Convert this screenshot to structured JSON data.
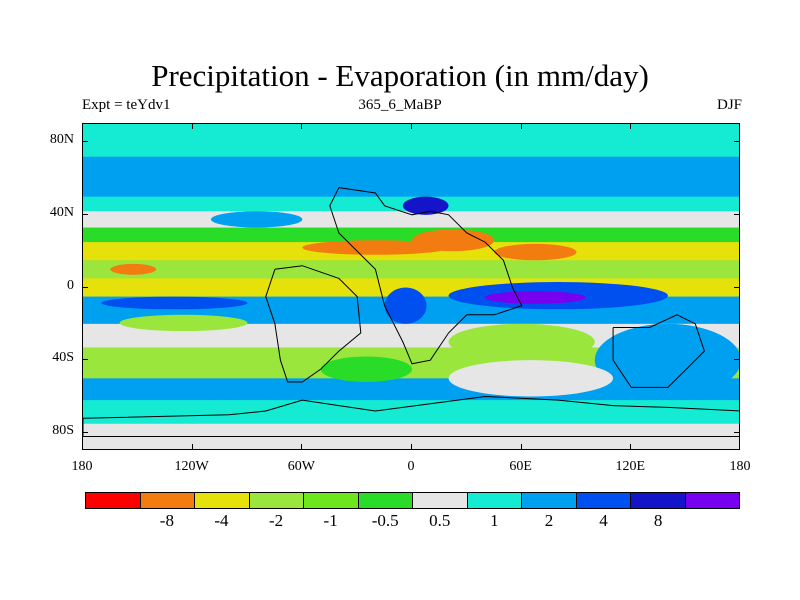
{
  "title": "Precipitation - Evaporation (in mm/day)",
  "subtitle_left": "Expt = teYdv1",
  "subtitle_center": "365_6_MaBP",
  "subtitle_right": "DJF",
  "y_axis": {
    "labels": [
      "80N",
      "40N",
      "0",
      "40S",
      "80S"
    ],
    "values": [
      80,
      40,
      0,
      -40,
      -80
    ],
    "range": [
      -90,
      90
    ]
  },
  "x_axis": {
    "labels": [
      "180",
      "120W",
      "60W",
      "0",
      "60E",
      "120E",
      "180"
    ],
    "values": [
      -180,
      -120,
      -60,
      0,
      60,
      120,
      180
    ],
    "range": [
      -180,
      180
    ]
  },
  "colorbar": {
    "colors": [
      "#ff0000",
      "#f27c10",
      "#e6e10a",
      "#9be63c",
      "#6ee61e",
      "#28dc28",
      "#e6e6e6",
      "#14ebd2",
      "#00a0f0",
      "#0050f0",
      "#1414c8",
      "#7800f0"
    ],
    "labels": [
      "-8",
      "-4",
      "-2",
      "-1",
      "-0.5",
      "0.5",
      "1",
      "2",
      "4",
      "8"
    ]
  },
  "zonal_bands": [
    {
      "lat_top": 90,
      "lat_bottom": 72,
      "color": "#14ebd2"
    },
    {
      "lat_top": 72,
      "lat_bottom": 50,
      "color": "#00a0f0"
    },
    {
      "lat_top": 50,
      "lat_bottom": 42,
      "color": "#14ebd2"
    },
    {
      "lat_top": 42,
      "lat_bottom": 33,
      "color": "#e6e6e6"
    },
    {
      "lat_top": 33,
      "lat_bottom": 25,
      "color": "#28dc28"
    },
    {
      "lat_top": 25,
      "lat_bottom": 15,
      "color": "#e6e10a"
    },
    {
      "lat_top": 15,
      "lat_bottom": 5,
      "color": "#9be63c"
    },
    {
      "lat_top": 5,
      "lat_bottom": -5,
      "color": "#e6e10a"
    },
    {
      "lat_top": -5,
      "lat_bottom": -20,
      "color": "#00a0f0"
    },
    {
      "lat_top": -20,
      "lat_bottom": -33,
      "color": "#e6e6e6"
    },
    {
      "lat_top": -33,
      "lat_bottom": -50,
      "color": "#9be63c"
    },
    {
      "lat_top": -50,
      "lat_bottom": -62,
      "color": "#00a0f0"
    },
    {
      "lat_top": -62,
      "lat_bottom": -75,
      "color": "#14ebd2"
    },
    {
      "lat_top": -75,
      "lat_bottom": -90,
      "color": "#e6e6e6"
    }
  ],
  "patches": [
    {
      "lon_min": -60,
      "lon_max": 20,
      "lat_min": 18,
      "lat_max": 26,
      "color": "#f27c10"
    },
    {
      "lon_min": 0,
      "lon_max": 45,
      "lat_min": 20,
      "lat_max": 32,
      "color": "#f27c10"
    },
    {
      "lon_min": -165,
      "lon_max": -140,
      "lat_min": 7,
      "lat_max": 13,
      "color": "#f27c10"
    },
    {
      "lon_min": 45,
      "lon_max": 90,
      "lat_min": 15,
      "lat_max": 24,
      "color": "#f27c10"
    },
    {
      "lon_min": 20,
      "lon_max": 140,
      "lat_min": -12,
      "lat_max": 3,
      "color": "#0050f0"
    },
    {
      "lon_min": 40,
      "lon_max": 95,
      "lat_min": -9,
      "lat_max": -2,
      "color": "#7800f0"
    },
    {
      "lon_min": -15,
      "lon_max": 8,
      "lat_min": -20,
      "lat_max": 0,
      "color": "#0050f0"
    },
    {
      "lon_min": -170,
      "lon_max": -90,
      "lat_min": -12,
      "lat_max": -5,
      "color": "#0050f0"
    },
    {
      "lon_min": 100,
      "lon_max": 180,
      "lat_min": -60,
      "lat_max": -20,
      "color": "#00a0f0"
    },
    {
      "lon_min": -160,
      "lon_max": -90,
      "lat_min": -24,
      "lat_max": -15,
      "color": "#9be63c"
    },
    {
      "lon_min": 20,
      "lon_max": 100,
      "lat_min": -40,
      "lat_max": -20,
      "color": "#9be63c"
    },
    {
      "lon_min": 20,
      "lon_max": 110,
      "lat_min": -60,
      "lat_max": -40,
      "color": "#e6e6e6"
    },
    {
      "lon_min": -50,
      "lon_max": 0,
      "lat_min": -52,
      "lat_max": -38,
      "color": "#28dc28"
    },
    {
      "lon_min": -110,
      "lon_max": -60,
      "lat_min": 33,
      "lat_max": 42,
      "color": "#00a0f0"
    },
    {
      "lon_min": -5,
      "lon_max": 20,
      "lat_min": 40,
      "lat_max": 50,
      "color": "#1414c8"
    }
  ],
  "land_outlines": [
    [
      [
        -40,
        55
      ],
      [
        -20,
        52
      ],
      [
        -15,
        45
      ],
      [
        0,
        40
      ],
      [
        10,
        42
      ],
      [
        20,
        40
      ],
      [
        30,
        30
      ],
      [
        40,
        25
      ],
      [
        50,
        15
      ],
      [
        55,
        0
      ],
      [
        60,
        -10
      ],
      [
        45,
        -15
      ],
      [
        30,
        -15
      ],
      [
        20,
        -25
      ],
      [
        10,
        -40
      ],
      [
        0,
        -42
      ],
      [
        -5,
        -30
      ],
      [
        -15,
        -10
      ],
      [
        -20,
        10
      ],
      [
        -30,
        20
      ],
      [
        -40,
        30
      ],
      [
        -45,
        45
      ],
      [
        -40,
        55
      ]
    ],
    [
      [
        -75,
        10
      ],
      [
        -60,
        12
      ],
      [
        -40,
        5
      ],
      [
        -30,
        -5
      ],
      [
        -28,
        -25
      ],
      [
        -40,
        -35
      ],
      [
        -50,
        -45
      ],
      [
        -60,
        -52
      ],
      [
        -68,
        -52
      ],
      [
        -72,
        -40
      ],
      [
        -75,
        -20
      ],
      [
        -80,
        -5
      ],
      [
        -75,
        10
      ]
    ],
    [
      [
        110,
        -22
      ],
      [
        130,
        -22
      ],
      [
        145,
        -15
      ],
      [
        155,
        -20
      ],
      [
        160,
        -35
      ],
      [
        150,
        -45
      ],
      [
        140,
        -55
      ],
      [
        120,
        -55
      ],
      [
        110,
        -40
      ],
      [
        110,
        -22
      ]
    ],
    [
      [
        -180,
        -72
      ],
      [
        -100,
        -70
      ],
      [
        -80,
        -68
      ],
      [
        -60,
        -62
      ],
      [
        -40,
        -65
      ],
      [
        -20,
        -68
      ],
      [
        10,
        -64
      ],
      [
        40,
        -60
      ],
      [
        80,
        -62
      ],
      [
        110,
        -65
      ],
      [
        140,
        -66
      ],
      [
        180,
        -68
      ],
      [
        180,
        -82
      ],
      [
        -180,
        -82
      ],
      [
        -180,
        -72
      ]
    ]
  ]
}
